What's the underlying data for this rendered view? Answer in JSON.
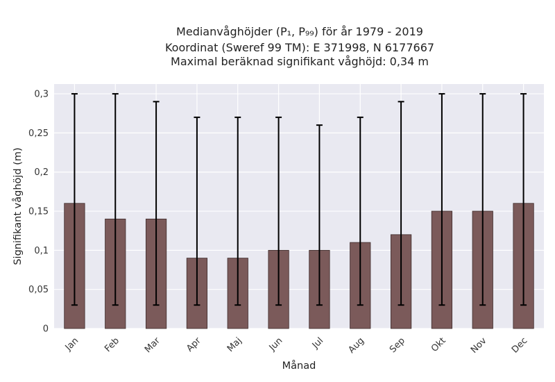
{
  "chart_data": {
    "type": "bar",
    "title_lines": [
      "Medianvåghöjder (P₁, P₉₉) för år 1979 - 2019",
      "Koordinat (Sweref 99 TM): E 371998, N 6177667",
      "Maximal beräknad signifikant våghöjd: 0,34 m"
    ],
    "xlabel": "Månad",
    "ylabel": "Signifikant våghöjd (m)",
    "categories": [
      "Jan",
      "Feb",
      "Mar",
      "Apr",
      "Maj",
      "Jun",
      "Jul",
      "Aug",
      "Sep",
      "Okt",
      "Nov",
      "Dec"
    ],
    "values": [
      0.16,
      0.14,
      0.14,
      0.09,
      0.09,
      0.1,
      0.1,
      0.11,
      0.12,
      0.15,
      0.15,
      0.16
    ],
    "lower": [
      0.03,
      0.03,
      0.03,
      0.03,
      0.03,
      0.03,
      0.03,
      0.03,
      0.03,
      0.03,
      0.03,
      0.03
    ],
    "upper": [
      0.3,
      0.3,
      0.29,
      0.27,
      0.27,
      0.27,
      0.26,
      0.27,
      0.29,
      0.3,
      0.3,
      0.3
    ],
    "yticks": [
      0,
      0.05,
      0.1,
      0.15,
      0.2,
      0.25,
      0.3
    ],
    "ytick_labels": [
      "0",
      "0,05",
      "0,1",
      "0,15",
      "0,2",
      "0,25",
      "0,3"
    ],
    "ylim": [
      0,
      0.3125
    ],
    "grid": true,
    "bar_color": "#7b5a5a",
    "background_color": "#e9e9f1"
  }
}
